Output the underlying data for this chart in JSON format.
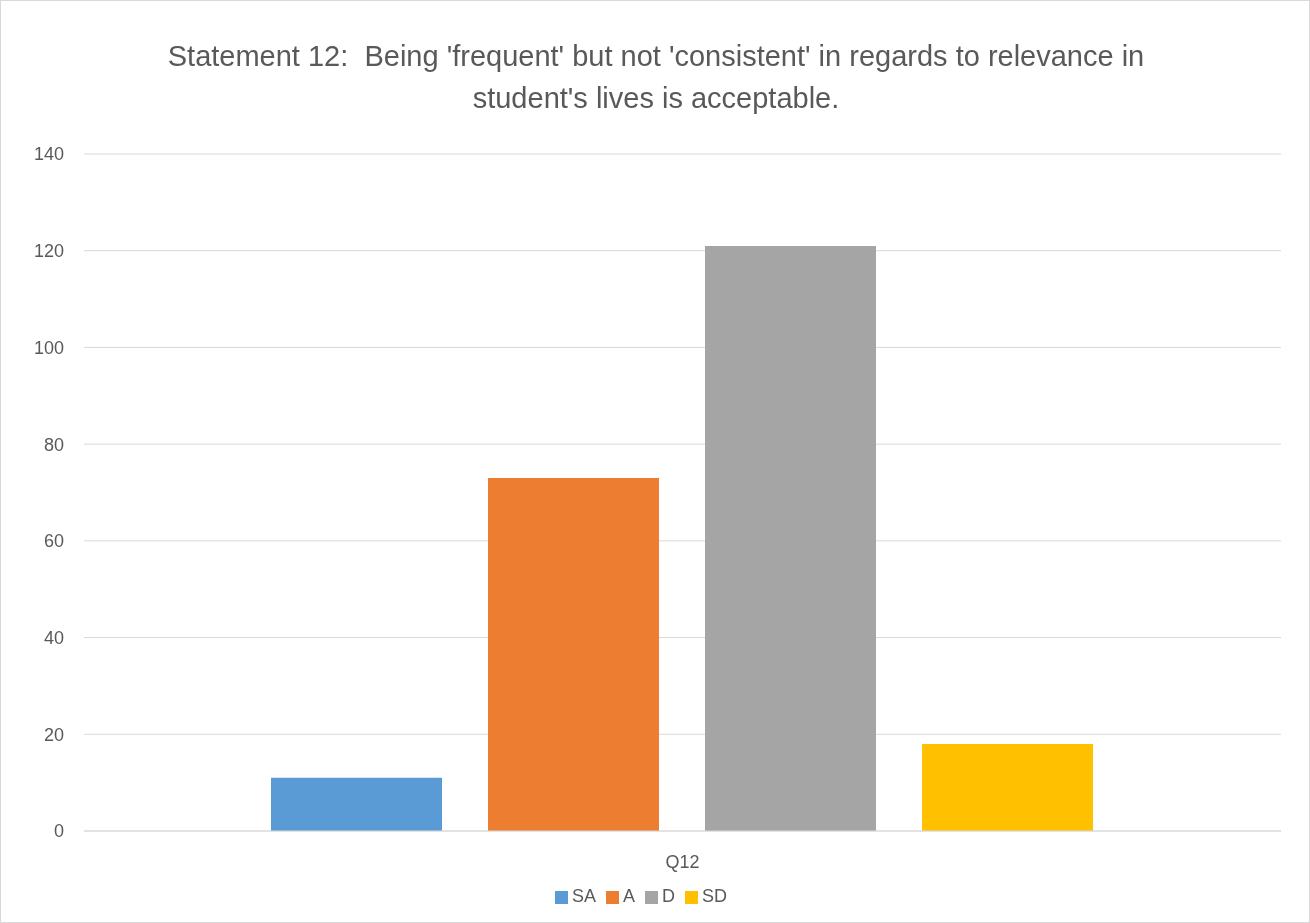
{
  "chart_data": {
    "type": "bar",
    "title": "Statement 12:  Being 'frequent' but not 'consistent' in regards to relevance in student's lives is acceptable.",
    "categories": [
      "Q12"
    ],
    "series": [
      {
        "name": "SA",
        "color": "#5b9bd5",
        "values": [
          11
        ]
      },
      {
        "name": "A",
        "color": "#ed7d31",
        "values": [
          73
        ]
      },
      {
        "name": "D",
        "color": "#a5a5a5",
        "values": [
          121
        ]
      },
      {
        "name": "SD",
        "color": "#ffc000",
        "values": [
          18
        ]
      }
    ],
    "ylim": [
      0,
      140
    ],
    "yticks": [
      0,
      20,
      40,
      60,
      80,
      100,
      120,
      140
    ],
    "grid": "y",
    "legend": "bottom"
  }
}
